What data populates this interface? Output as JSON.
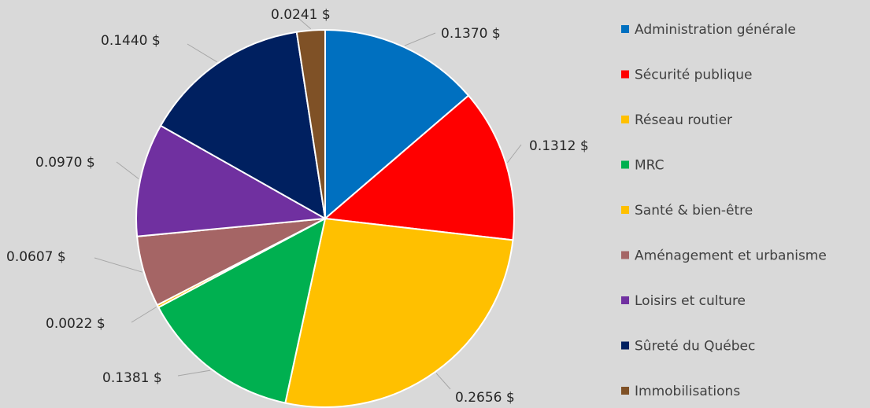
{
  "chart_data": {
    "type": "pie",
    "title": "",
    "legend_position": "right",
    "slices": [
      {
        "name": "Administration générale",
        "value": 0.137,
        "label": "0.1370 $",
        "color": "#0070c0"
      },
      {
        "name": "Sécurité publique",
        "value": 0.1312,
        "label": "0.1312 $",
        "color": "#ff0000"
      },
      {
        "name": "Réseau routier",
        "value": 0.2656,
        "label": "0.2656 $",
        "color": "#ffc000"
      },
      {
        "name": "MRC",
        "value": 0.1381,
        "label": "0.1381 $",
        "color": "#00b050"
      },
      {
        "name": "Santé & bien-être",
        "value": 0.0022,
        "label": "0.0022 $",
        "color": "#ffc000"
      },
      {
        "name": "Aménagement et urbanisme",
        "value": 0.0607,
        "label": "0.0607 $",
        "color": "#a56565"
      },
      {
        "name": "Loisirs et culture",
        "value": 0.097,
        "label": "0.0970 $",
        "color": "#7030a0"
      },
      {
        "name": "Sûreté du Québec",
        "value": 0.144,
        "label": "0.1440 $",
        "color": "#002060"
      },
      {
        "name": "Immobilisations",
        "value": 0.0241,
        "label": "0.0241 $",
        "color": "#7f5126"
      }
    ]
  }
}
